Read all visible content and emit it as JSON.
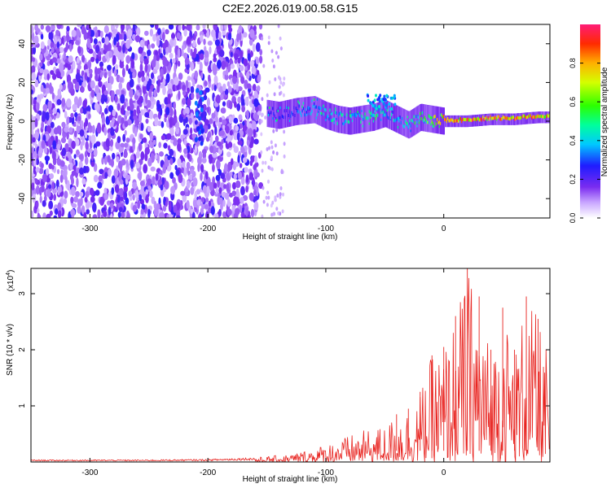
{
  "title": "C2E2.2026.019.00.58.G15",
  "colors": {
    "snr_line": "#e8231f",
    "axis": "#000000",
    "background": "#ffffff"
  },
  "chart_data": [
    {
      "type": "heatmap",
      "name": "spectrogram",
      "xlabel": "Height of straight line (km)",
      "ylabel": "Frequency (Hz)",
      "xlim": [
        -350,
        90
      ],
      "ylim": [
        -50,
        50
      ],
      "xticks": [
        -300,
        -200,
        -100,
        0
      ],
      "yticks": [
        -40,
        -20,
        0,
        20,
        40
      ],
      "colorbar": {
        "label": "Normalized spectral amplitude",
        "range": [
          0.0,
          1.0
        ],
        "ticks": [
          "0.0",
          "0.2",
          "0.4",
          "0.6",
          "0.8"
        ],
        "tick_values": [
          0.0,
          0.2,
          0.4,
          0.6,
          0.8
        ]
      },
      "regions": [
        {
          "description": "broadband noise",
          "x_range": [
            -350,
            -155
          ],
          "f_range": [
            -50,
            50
          ],
          "amplitude": 0.12
        },
        {
          "description": "sparse noise",
          "x_range": [
            -155,
            -135
          ],
          "f_range": [
            -50,
            50
          ],
          "amplitude": 0.05
        },
        {
          "description": "signal trace",
          "x_range": [
            -150,
            90
          ],
          "center_hz": 0,
          "amplitude": [
            0.2,
            1.0
          ]
        }
      ],
      "signal_trace": {
        "x": [
          -150,
          -140,
          -125,
          -110,
          -100,
          -90,
          -80,
          -70,
          -60,
          -50,
          -40,
          -30,
          -20,
          -10,
          0,
          20,
          40,
          60,
          80,
          90
        ],
        "f": [
          4,
          3,
          5,
          6,
          3,
          1,
          0,
          1,
          2,
          4,
          1,
          -2,
          2,
          1,
          0,
          0,
          1,
          1,
          2,
          2
        ],
        "amplitude": [
          0.25,
          0.3,
          0.35,
          0.4,
          0.45,
          0.5,
          0.5,
          0.5,
          0.55,
          0.5,
          0.45,
          0.45,
          0.6,
          0.75,
          0.85,
          0.95,
          0.95,
          0.95,
          0.9,
          0.85
        ]
      }
    },
    {
      "type": "line",
      "name": "snr",
      "xlabel": "Height of straight line (km)",
      "ylabel": "SNR (10 * v/v)",
      "y_multiplier_label": "(x10",
      "y_multiplier_exp": "4",
      "y_multiplier_close": ")",
      "xlim": [
        -350,
        90
      ],
      "ylim": [
        0,
        3.45
      ],
      "xticks": [
        -300,
        -200,
        -100,
        0
      ],
      "yticks": [
        1,
        2,
        3
      ],
      "envelope": {
        "x": [
          -350,
          -300,
          -250,
          -200,
          -160,
          -130,
          -110,
          -90,
          -70,
          -50,
          -40,
          -30,
          -20,
          -10,
          0,
          10,
          20,
          30,
          40,
          50,
          60,
          70,
          80,
          90
        ],
        "y_max": [
          0.04,
          0.04,
          0.04,
          0.05,
          0.08,
          0.14,
          0.25,
          0.4,
          0.55,
          0.65,
          0.85,
          0.95,
          1.25,
          1.9,
          2.05,
          2.6,
          3.45,
          2.95,
          2.0,
          2.75,
          2.0,
          2.95,
          2.55,
          1.85
        ]
      }
    }
  ]
}
